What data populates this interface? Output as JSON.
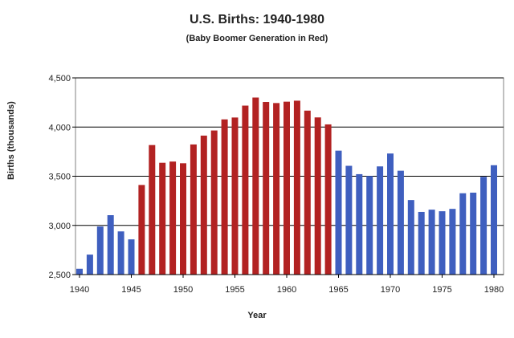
{
  "chart_data": {
    "type": "bar",
    "title": "U.S. Births: 1940-1980",
    "subtitle": "(Baby Boomer Generation in Red)",
    "xlabel": "Year",
    "ylabel": "Births (thousands)",
    "ylim": [
      2500,
      4500
    ],
    "yticks": [
      "2,500",
      "3,000",
      "3,500",
      "4,000",
      "4,500"
    ],
    "ytick_values": [
      2500,
      3000,
      3500,
      4000,
      4500
    ],
    "xticks": [
      "1940",
      "1945",
      "1950",
      "1955",
      "1960",
      "1965",
      "1970",
      "1975",
      "1980"
    ],
    "grid": "horizontal",
    "categories": [
      1940,
      1941,
      1942,
      1943,
      1944,
      1945,
      1946,
      1947,
      1948,
      1949,
      1950,
      1951,
      1952,
      1953,
      1954,
      1955,
      1956,
      1957,
      1958,
      1959,
      1960,
      1961,
      1962,
      1963,
      1964,
      1965,
      1966,
      1967,
      1968,
      1969,
      1970,
      1971,
      1972,
      1973,
      1974,
      1975,
      1976,
      1977,
      1978,
      1979,
      1980
    ],
    "values": [
      2559,
      2703,
      2989,
      3104,
      2939,
      2858,
      3411,
      3817,
      3637,
      3649,
      3632,
      3823,
      3913,
      3965,
      4078,
      4097,
      4218,
      4300,
      4255,
      4244,
      4258,
      4268,
      4167,
      4098,
      4027,
      3760,
      3606,
      3521,
      3502,
      3600,
      3731,
      3556,
      3258,
      3137,
      3160,
      3144,
      3168,
      3327,
      3333,
      3494,
      3612
    ],
    "boomer_years": [
      1946,
      1964
    ],
    "colors": {
      "boomer": "#b22222",
      "other": "#3f5fbf",
      "grid": "#000000",
      "plot_border": "#808080"
    }
  }
}
